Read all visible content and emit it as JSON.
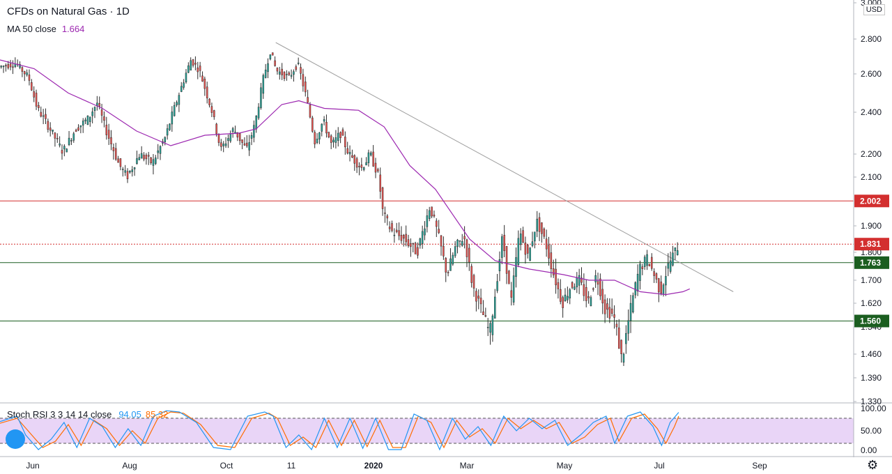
{
  "header": {
    "title": "CFDs on Natural Gas · 1D",
    "ma_label": "MA 50 close",
    "ma_value": "1.664",
    "currency": "USD"
  },
  "oscillator": {
    "label": "Stoch RSI 3 3 14 14 close",
    "k_value": "94.05",
    "d_value": "85.32",
    "ticks": [
      "100.00",
      "50.00",
      "0.00"
    ],
    "upper_band": 80,
    "lower_band": 20
  },
  "colors": {
    "up": "#26a69a",
    "down": "#ef5350",
    "ma": "#9c27b0",
    "resistance": "#d32f2f",
    "support": "#1b5e20",
    "trendline": "#9e9e9e",
    "k": "#2196f3",
    "d": "#ff6d00"
  },
  "icons": {
    "settings": "gear-icon",
    "logo": "tradingview-logo-icon"
  },
  "chart_data": {
    "type": "candlestick",
    "x_ticks": [
      "Jun",
      "Aug",
      "Oct",
      "11",
      "2020",
      "Mar",
      "May",
      "Jul",
      "Sep"
    ],
    "y_ticks": [
      "3.000",
      "2.800",
      "2.600",
      "2.400",
      "2.200",
      "2.100",
      "1.900",
      "1.800",
      "1.700",
      "1.620",
      "1.540",
      "1.460",
      "1.390",
      "1.330"
    ],
    "ylim": [
      1.33,
      3.0
    ],
    "price_labels": [
      "2.002",
      "1.831",
      "1.763",
      "1.560"
    ],
    "levels": [
      {
        "value": 2.002,
        "style": "solid",
        "color": "#d32f2f"
      },
      {
        "value": 1.831,
        "style": "dotted",
        "color": "#d32f2f"
      },
      {
        "value": 1.763,
        "style": "solid",
        "color": "#1b5e20"
      },
      {
        "value": 1.56,
        "style": "solid",
        "color": "#1b5e20"
      }
    ],
    "trendline": {
      "from": [
        0.323,
        2.78
      ],
      "to": [
        0.859,
        1.66
      ]
    },
    "ma_path": [
      [
        0.0,
        2.68
      ],
      [
        0.04,
        2.63
      ],
      [
        0.08,
        2.5
      ],
      [
        0.12,
        2.42
      ],
      [
        0.16,
        2.31
      ],
      [
        0.2,
        2.24
      ],
      [
        0.24,
        2.29
      ],
      [
        0.28,
        2.3
      ],
      [
        0.3,
        2.32
      ],
      [
        0.33,
        2.44
      ],
      [
        0.35,
        2.46
      ],
      [
        0.38,
        2.42
      ],
      [
        0.42,
        2.41
      ],
      [
        0.45,
        2.33
      ],
      [
        0.48,
        2.15
      ],
      [
        0.51,
        2.05
      ],
      [
        0.55,
        1.85
      ],
      [
        0.58,
        1.77
      ],
      [
        0.62,
        1.74
      ],
      [
        0.66,
        1.72
      ],
      [
        0.69,
        1.7
      ],
      [
        0.72,
        1.7
      ],
      [
        0.75,
        1.66
      ],
      [
        0.78,
        1.65
      ],
      [
        0.8,
        1.66
      ],
      [
        0.808,
        1.67
      ]
    ],
    "price_path": [
      [
        0.0,
        2.64
      ],
      [
        0.02,
        2.66
      ],
      [
        0.035,
        2.58
      ],
      [
        0.045,
        2.42
      ],
      [
        0.06,
        2.32
      ],
      [
        0.075,
        2.21
      ],
      [
        0.09,
        2.32
      ],
      [
        0.105,
        2.37
      ],
      [
        0.115,
        2.45
      ],
      [
        0.125,
        2.32
      ],
      [
        0.14,
        2.16
      ],
      [
        0.15,
        2.1
      ],
      [
        0.165,
        2.2
      ],
      [
        0.18,
        2.16
      ],
      [
        0.195,
        2.28
      ],
      [
        0.21,
        2.48
      ],
      [
        0.225,
        2.68
      ],
      [
        0.235,
        2.62
      ],
      [
        0.25,
        2.4
      ],
      [
        0.26,
        2.22
      ],
      [
        0.275,
        2.32
      ],
      [
        0.29,
        2.22
      ],
      [
        0.3,
        2.34
      ],
      [
        0.31,
        2.58
      ],
      [
        0.318,
        2.73
      ],
      [
        0.325,
        2.62
      ],
      [
        0.34,
        2.58
      ],
      [
        0.35,
        2.66
      ],
      [
        0.36,
        2.48
      ],
      [
        0.37,
        2.26
      ],
      [
        0.38,
        2.36
      ],
      [
        0.39,
        2.24
      ],
      [
        0.4,
        2.3
      ],
      [
        0.41,
        2.2
      ],
      [
        0.425,
        2.14
      ],
      [
        0.435,
        2.2
      ],
      [
        0.445,
        2.1
      ],
      [
        0.45,
        1.95
      ],
      [
        0.46,
        1.88
      ],
      [
        0.475,
        1.85
      ],
      [
        0.49,
        1.8
      ],
      [
        0.505,
        1.98
      ],
      [
        0.515,
        1.86
      ],
      [
        0.525,
        1.72
      ],
      [
        0.535,
        1.82
      ],
      [
        0.545,
        1.86
      ],
      [
        0.555,
        1.68
      ],
      [
        0.565,
        1.6
      ],
      [
        0.575,
        1.52
      ],
      [
        0.58,
        1.62
      ],
      [
        0.59,
        1.86
      ],
      [
        0.6,
        1.62
      ],
      [
        0.61,
        1.88
      ],
      [
        0.62,
        1.78
      ],
      [
        0.63,
        1.92
      ],
      [
        0.64,
        1.84
      ],
      [
        0.65,
        1.72
      ],
      [
        0.66,
        1.62
      ],
      [
        0.67,
        1.68
      ],
      [
        0.68,
        1.7
      ],
      [
        0.69,
        1.62
      ],
      [
        0.7,
        1.72
      ],
      [
        0.71,
        1.6
      ],
      [
        0.72,
        1.58
      ],
      [
        0.73,
        1.44
      ],
      [
        0.74,
        1.6
      ],
      [
        0.75,
        1.74
      ],
      [
        0.76,
        1.78
      ],
      [
        0.77,
        1.7
      ],
      [
        0.775,
        1.66
      ],
      [
        0.785,
        1.76
      ],
      [
        0.795,
        1.82
      ]
    ],
    "stoch_k": [
      [
        0.0,
        72
      ],
      [
        0.02,
        85
      ],
      [
        0.03,
        40
      ],
      [
        0.045,
        5
      ],
      [
        0.06,
        30
      ],
      [
        0.075,
        70
      ],
      [
        0.09,
        10
      ],
      [
        0.105,
        80
      ],
      [
        0.12,
        60
      ],
      [
        0.135,
        10
      ],
      [
        0.15,
        55
      ],
      [
        0.165,
        15
      ],
      [
        0.18,
        85
      ],
      [
        0.195,
        98
      ],
      [
        0.21,
        95
      ],
      [
        0.23,
        70
      ],
      [
        0.25,
        10
      ],
      [
        0.27,
        5
      ],
      [
        0.29,
        85
      ],
      [
        0.31,
        95
      ],
      [
        0.32,
        85
      ],
      [
        0.335,
        10
      ],
      [
        0.35,
        40
      ],
      [
        0.365,
        5
      ],
      [
        0.38,
        80
      ],
      [
        0.395,
        10
      ],
      [
        0.41,
        80
      ],
      [
        0.425,
        8
      ],
      [
        0.44,
        80
      ],
      [
        0.455,
        5
      ],
      [
        0.47,
        5
      ],
      [
        0.485,
        90
      ],
      [
        0.5,
        75
      ],
      [
        0.515,
        5
      ],
      [
        0.53,
        80
      ],
      [
        0.545,
        30
      ],
      [
        0.56,
        60
      ],
      [
        0.575,
        15
      ],
      [
        0.59,
        85
      ],
      [
        0.605,
        50
      ],
      [
        0.62,
        80
      ],
      [
        0.635,
        55
      ],
      [
        0.65,
        75
      ],
      [
        0.665,
        15
      ],
      [
        0.68,
        40
      ],
      [
        0.695,
        70
      ],
      [
        0.71,
        85
      ],
      [
        0.72,
        20
      ],
      [
        0.735,
        85
      ],
      [
        0.75,
        95
      ],
      [
        0.765,
        60
      ],
      [
        0.775,
        15
      ],
      [
        0.785,
        70
      ],
      [
        0.795,
        94
      ]
    ],
    "stoch_d": [
      [
        0.0,
        68
      ],
      [
        0.02,
        80
      ],
      [
        0.035,
        45
      ],
      [
        0.05,
        10
      ],
      [
        0.065,
        25
      ],
      [
        0.08,
        65
      ],
      [
        0.095,
        15
      ],
      [
        0.11,
        75
      ],
      [
        0.125,
        55
      ],
      [
        0.14,
        15
      ],
      [
        0.155,
        50
      ],
      [
        0.17,
        20
      ],
      [
        0.185,
        80
      ],
      [
        0.2,
        95
      ],
      [
        0.215,
        92
      ],
      [
        0.235,
        65
      ],
      [
        0.255,
        15
      ],
      [
        0.275,
        10
      ],
      [
        0.295,
        80
      ],
      [
        0.315,
        92
      ],
      [
        0.325,
        80
      ],
      [
        0.34,
        15
      ],
      [
        0.355,
        35
      ],
      [
        0.37,
        10
      ],
      [
        0.385,
        75
      ],
      [
        0.4,
        15
      ],
      [
        0.415,
        75
      ],
      [
        0.43,
        12
      ],
      [
        0.445,
        75
      ],
      [
        0.46,
        10
      ],
      [
        0.475,
        10
      ],
      [
        0.49,
        85
      ],
      [
        0.505,
        70
      ],
      [
        0.52,
        10
      ],
      [
        0.535,
        75
      ],
      [
        0.55,
        35
      ],
      [
        0.565,
        55
      ],
      [
        0.58,
        20
      ],
      [
        0.595,
        80
      ],
      [
        0.61,
        55
      ],
      [
        0.625,
        75
      ],
      [
        0.64,
        55
      ],
      [
        0.655,
        70
      ],
      [
        0.67,
        20
      ],
      [
        0.685,
        35
      ],
      [
        0.7,
        65
      ],
      [
        0.715,
        80
      ],
      [
        0.725,
        25
      ],
      [
        0.74,
        80
      ],
      [
        0.755,
        90
      ],
      [
        0.77,
        55
      ],
      [
        0.78,
        20
      ],
      [
        0.79,
        60
      ],
      [
        0.795,
        85
      ]
    ]
  }
}
